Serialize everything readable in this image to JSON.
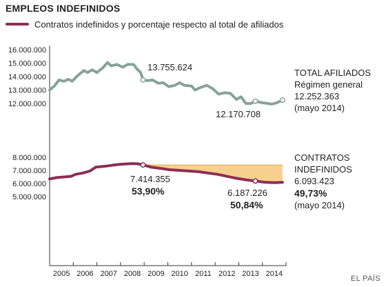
{
  "colors": {
    "total": "#86a39a",
    "contracts": "#8c2e54",
    "band": "#f6c77a",
    "axis": "#333333",
    "grid": "#cccccc"
  },
  "header": {
    "title": "EMPLEOS INDEFINIDOS",
    "legend_label": "Contratos indefinidos y porcentaje respecto al total de afiliados"
  },
  "source": "EL PAÍS",
  "chart_data": {
    "type": "line",
    "x_range": [
      2004.5,
      2014.5
    ],
    "x_ticks": [
      "2005",
      "2006",
      "2007",
      "2008",
      "2009",
      "2010",
      "2011",
      "2012",
      "2013",
      "2014"
    ],
    "y_ticks_top": [
      "16.000.000",
      "15.000.000",
      "14.000.000",
      "13.000.000",
      "12.000.000"
    ],
    "y_ticks_bottom": [
      "8.000.000",
      "7.000.000",
      "6.000.000",
      "5.000.000"
    ],
    "series": [
      {
        "name": "TOTAL AFILIADOS",
        "key": "total",
        "points": [
          [
            2004.5,
            13.0
          ],
          [
            2004.7,
            13.3
          ],
          [
            2004.9,
            13.75
          ],
          [
            2005.1,
            13.65
          ],
          [
            2005.3,
            13.8
          ],
          [
            2005.45,
            13.65
          ],
          [
            2005.7,
            14.1
          ],
          [
            2005.95,
            14.45
          ],
          [
            2006.1,
            14.3
          ],
          [
            2006.3,
            14.5
          ],
          [
            2006.5,
            14.3
          ],
          [
            2006.75,
            14.65
          ],
          [
            2006.95,
            15.05
          ],
          [
            2007.1,
            14.8
          ],
          [
            2007.35,
            14.9
          ],
          [
            2007.6,
            14.7
          ],
          [
            2007.8,
            14.9
          ],
          [
            2008.05,
            14.9
          ],
          [
            2008.2,
            14.55
          ],
          [
            2008.35,
            14.3
          ],
          [
            2008.45,
            13.755624
          ],
          [
            2008.65,
            13.7
          ],
          [
            2008.85,
            13.75
          ],
          [
            2009.1,
            13.5
          ],
          [
            2009.3,
            13.55
          ],
          [
            2009.55,
            13.25
          ],
          [
            2009.8,
            13.35
          ],
          [
            2010.0,
            13.55
          ],
          [
            2010.2,
            13.35
          ],
          [
            2010.5,
            13.3
          ],
          [
            2010.65,
            13.0
          ],
          [
            2010.9,
            13.2
          ],
          [
            2011.15,
            13.35
          ],
          [
            2011.4,
            13.1
          ],
          [
            2011.65,
            12.7
          ],
          [
            2011.9,
            12.8
          ],
          [
            2012.15,
            12.75
          ],
          [
            2012.4,
            12.3
          ],
          [
            2012.6,
            12.5
          ],
          [
            2012.8,
            12.0
          ],
          [
            2013.0,
            12.0
          ],
          [
            2013.2,
            12.170708
          ],
          [
            2013.5,
            12.05
          ],
          [
            2013.75,
            12.0
          ],
          [
            2013.9,
            11.95
          ],
          [
            2014.1,
            12.05
          ],
          [
            2014.35,
            12.252363
          ]
        ],
        "markers": [
          [
            2008.45,
            13.755624
          ],
          [
            2013.2,
            12.170708
          ],
          [
            2014.35,
            12.252363
          ]
        ]
      },
      {
        "name": "CONTRATOS INDEFINIDOS",
        "key": "contracts",
        "points": [
          [
            2004.5,
            6.35
          ],
          [
            2004.8,
            6.45
          ],
          [
            2005.1,
            6.5
          ],
          [
            2005.4,
            6.55
          ],
          [
            2005.6,
            6.7
          ],
          [
            2005.9,
            6.8
          ],
          [
            2006.2,
            6.95
          ],
          [
            2006.45,
            7.25
          ],
          [
            2006.75,
            7.3
          ],
          [
            2007.0,
            7.35
          ],
          [
            2007.25,
            7.42
          ],
          [
            2007.5,
            7.47
          ],
          [
            2007.8,
            7.5
          ],
          [
            2008.05,
            7.52
          ],
          [
            2008.25,
            7.5
          ],
          [
            2008.45,
            7.414355
          ],
          [
            2008.8,
            7.25
          ],
          [
            2009.2,
            7.15
          ],
          [
            2009.6,
            7.05
          ],
          [
            2010.0,
            7.0
          ],
          [
            2010.4,
            6.95
          ],
          [
            2010.8,
            6.9
          ],
          [
            2011.2,
            6.8
          ],
          [
            2011.6,
            6.7
          ],
          [
            2012.0,
            6.55
          ],
          [
            2012.4,
            6.4
          ],
          [
            2012.8,
            6.28
          ],
          [
            2013.2,
            6.187226
          ],
          [
            2013.6,
            6.1
          ],
          [
            2014.0,
            6.07
          ],
          [
            2014.35,
            6.093423
          ]
        ],
        "markers": [
          [
            2008.45,
            7.414355
          ],
          [
            2013.2,
            6.187226
          ]
        ]
      }
    ],
    "shaded_band": {
      "x_range": [
        2008.45,
        2014.35
      ],
      "upper_value": 7.414355
    },
    "annotations": {
      "total_peak": "13.755.624",
      "total_2013": "12.170.708",
      "total_label_1": "TOTAL AFILIADOS",
      "total_label_2": "Régimen general",
      "total_label_3": "12.252.363",
      "total_label_4": "(mayo 2014)",
      "contracts_peak": "7.414.355",
      "contracts_peak_pct": "53,90%",
      "contracts_2013": "6.187.226",
      "contracts_2013_pct": "50,84%",
      "contracts_label_1": "CONTRATOS",
      "contracts_label_2": "INDEFINIDOS",
      "contracts_label_3": "6.093.423",
      "contracts_label_4": "49,73%",
      "contracts_label_5": "(mayo 2014)"
    }
  }
}
